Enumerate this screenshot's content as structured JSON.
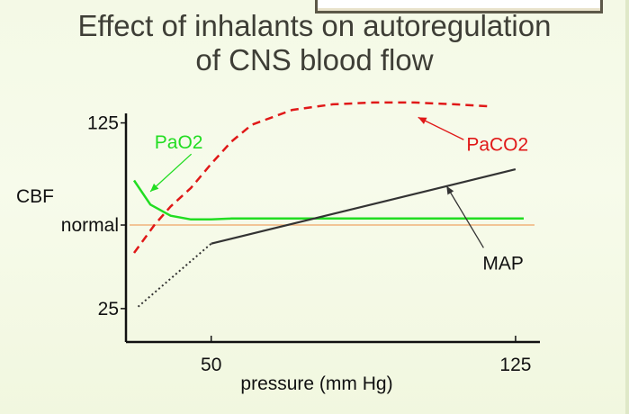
{
  "slide": {
    "title_line1": "Effect of inhalants on autoregulation",
    "title_line2": "of CNS blood flow"
  },
  "colors": {
    "pao2": "#22dd22",
    "paco2": "#e01818",
    "map": "#333333",
    "normal_line": "#f0b27a",
    "axis": "#111111",
    "text": "#111111"
  },
  "chart_data": {
    "type": "line",
    "title": "Effect of inhalants on autoregulation of CNS blood flow",
    "xlabel": "pressure (mm Hg)",
    "ylabel": "CBF",
    "x_ticks": [
      {
        "value": 50,
        "label": "50"
      },
      {
        "value": 125,
        "label": "125"
      }
    ],
    "y_ticks": [
      {
        "value": 125,
        "label": "125"
      },
      {
        "value": 70,
        "label": "normal"
      },
      {
        "value": 25,
        "label": "25"
      }
    ],
    "xlim": [
      29,
      131
    ],
    "ylim": [
      7,
      134
    ],
    "reference_line": {
      "name": "normal",
      "y": 70
    },
    "series": [
      {
        "name": "PaO2",
        "style": "solid",
        "points": [
          [
            31,
            94
          ],
          [
            35,
            81
          ],
          [
            40,
            75
          ],
          [
            45,
            73
          ],
          [
            50,
            73
          ],
          [
            55,
            73.5
          ],
          [
            75,
            73.5
          ],
          [
            100,
            73.5
          ],
          [
            127,
            73.5
          ]
        ]
      },
      {
        "name": "PaCO2",
        "style": "dashed",
        "points": [
          [
            31,
            55
          ],
          [
            36,
            70
          ],
          [
            40,
            80
          ],
          [
            45,
            90
          ],
          [
            50,
            103
          ],
          [
            55,
            115
          ],
          [
            60,
            124
          ],
          [
            70,
            132
          ],
          [
            80,
            135
          ],
          [
            90,
            136
          ],
          [
            100,
            136
          ],
          [
            110,
            135
          ],
          [
            118,
            134
          ]
        ]
      },
      {
        "name": "MAP",
        "style": "solid",
        "points": [
          [
            50,
            60
          ],
          [
            125,
            100
          ]
        ]
      },
      {
        "name": "MAP (below autoregulation)",
        "style": "dotted",
        "points": [
          [
            32,
            26
          ],
          [
            50,
            60
          ]
        ]
      }
    ],
    "annotations": [
      {
        "label": "PaO2",
        "series": "PaO2",
        "text_at": [
          42,
          115
        ],
        "arrow_to": [
          35,
          88
        ]
      },
      {
        "label": "PaCO2",
        "series": "PaCO2",
        "text_at": [
          114,
          114
        ],
        "arrow_to": [
          101,
          128
        ]
      },
      {
        "label": "MAP",
        "series": "MAP",
        "text_at": [
          118,
          50
        ],
        "arrow_to": [
          108,
          91
        ]
      }
    ]
  }
}
